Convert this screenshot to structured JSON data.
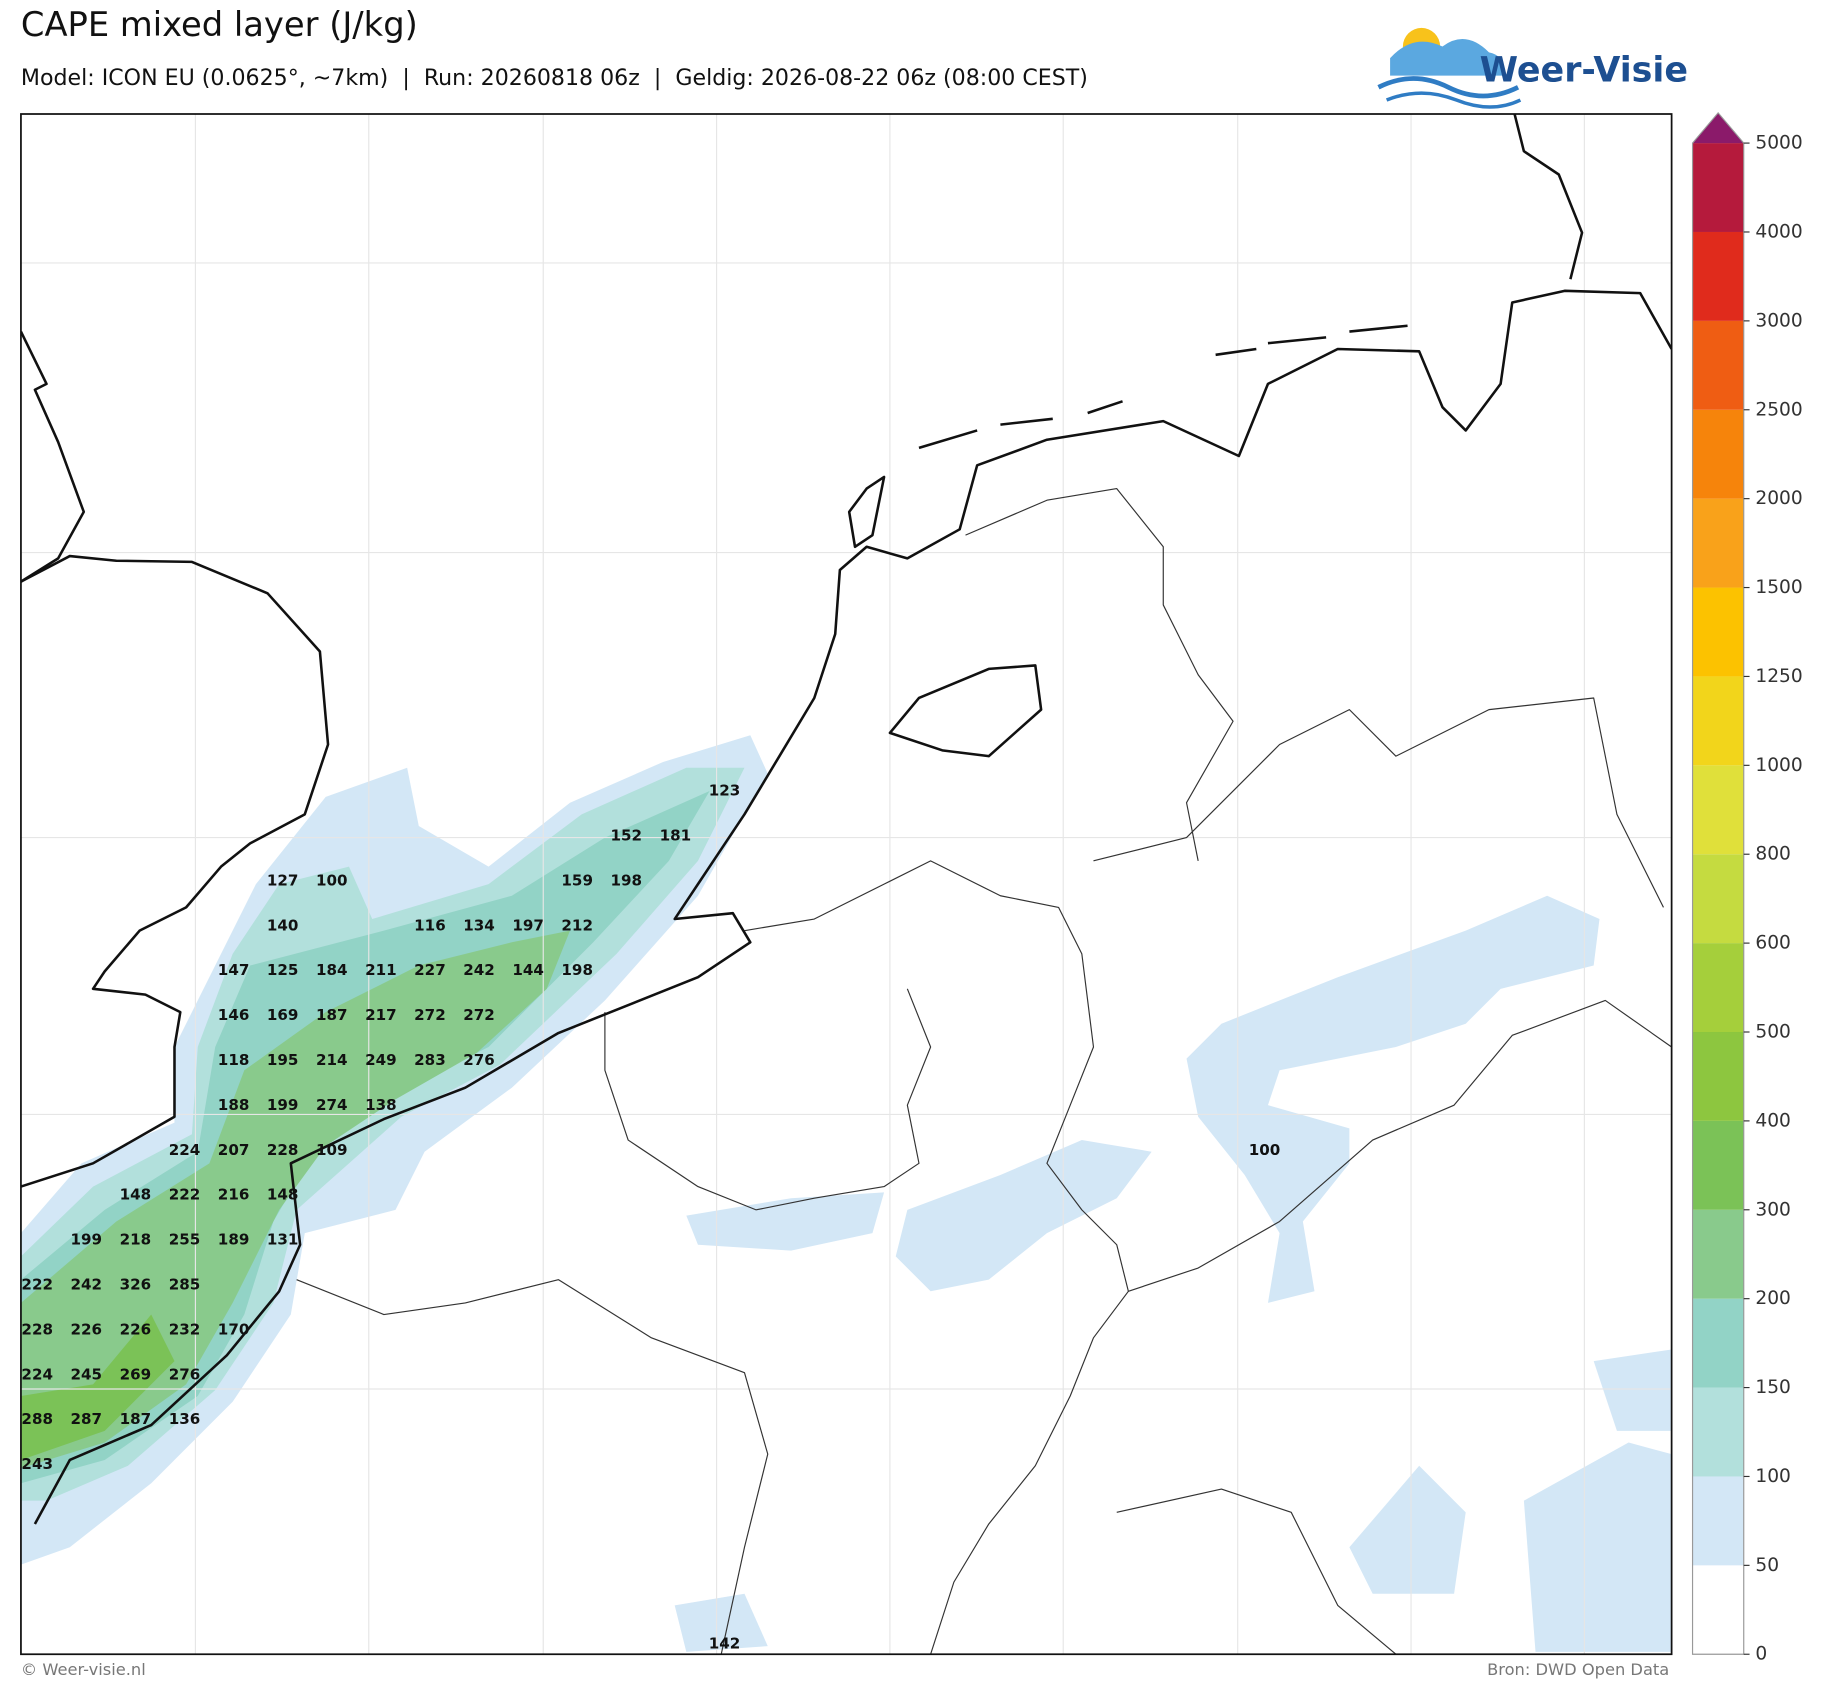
{
  "header": {
    "title": "CAPE mixed layer (J/kg)",
    "subtitle": "Model: ICON EU (0.0625°, ~7km)  |  Run: 20260818 06z  |  Geldig: 2026-08-22 06z (08:00 CEST)",
    "logo": "Weer-Visie"
  },
  "map": {
    "value_labels": [
      [
        null,
        null,
        null,
        null,
        null,
        null,
        null,
        null,
        null,
        null,
        null,
        null,
        null,
        null,
        123
      ],
      [
        null,
        null,
        null,
        null,
        null,
        null,
        null,
        null,
        null,
        null,
        null,
        null,
        152,
        181
      ],
      [
        null,
        null,
        null,
        null,
        null,
        127,
        100,
        null,
        null,
        null,
        null,
        159,
        198
      ],
      [
        null,
        null,
        null,
        null,
        null,
        140,
        null,
        null,
        116,
        134,
        197,
        212
      ],
      [
        null,
        null,
        null,
        null,
        147,
        125,
        184,
        211,
        227,
        242,
        144,
        198
      ],
      [
        null,
        null,
        null,
        null,
        146,
        169,
        187,
        217,
        272,
        272
      ],
      [
        null,
        null,
        null,
        null,
        118,
        195,
        214,
        249,
        283,
        276
      ],
      [
        null,
        null,
        null,
        null,
        188,
        199,
        274,
        138
      ],
      [
        null,
        null,
        null,
        224,
        207,
        228,
        109,
        null,
        null,
        null,
        null,
        null,
        null,
        null,
        null,
        null,
        null,
        null,
        null,
        null,
        null,
        null,
        null,
        null,
        null,
        100
      ],
      [
        null,
        null,
        148,
        222,
        216,
        148
      ],
      [
        null,
        199,
        218,
        255,
        189,
        131
      ],
      [
        222,
        242,
        326,
        285
      ],
      [
        228,
        226,
        226,
        232,
        170
      ],
      [
        224,
        245,
        269,
        276
      ],
      [
        288,
        287,
        187,
        136
      ],
      [
        243
      ],
      [],
      [],
      [],
      [
        null,
        null,
        null,
        null,
        null,
        null,
        null,
        null,
        null,
        null,
        null,
        null,
        null,
        null,
        142
      ]
    ]
  },
  "colorbar": {
    "levels": [
      0,
      50,
      100,
      150,
      200,
      300,
      400,
      500,
      600,
      800,
      1000,
      1250,
      1500,
      2000,
      2500,
      3000,
      4000,
      5000
    ],
    "colors": [
      "#ffffff",
      "#d3e7f6",
      "#b2e0dc",
      "#92d3c6",
      "#89ca8c",
      "#7bc257",
      "#8dc63f",
      "#a5cf3b",
      "#c5db40",
      "#e0e03a",
      "#f2d51b",
      "#fcc200",
      "#f9a21a",
      "#f6840b",
      "#ef5d13",
      "#e02b1c",
      "#b51a3c"
    ],
    "extend_color": "#8b1a6a"
  },
  "footer": {
    "left": "© Weer-visie.nl",
    "right": "Bron: DWD Open Data"
  }
}
